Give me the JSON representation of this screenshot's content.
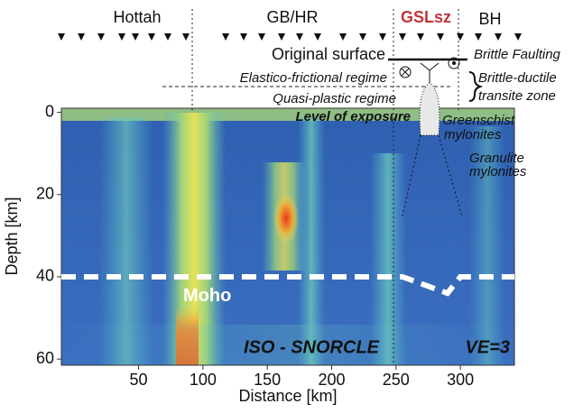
{
  "chart_data": {
    "type": "line",
    "x_label": "Distance [km]",
    "y_label": "Depth [km]",
    "xlim": [
      -10,
      342
    ],
    "ylim": [
      -1,
      61.5
    ],
    "y_inverted": true,
    "xticks": [
      50,
      100,
      150,
      200,
      250,
      300
    ],
    "yticks": [
      0,
      20,
      40,
      60
    ],
    "series": [
      {
        "name": "Moho",
        "color": "#ffffff",
        "dashed": true,
        "x": [
          -10,
          255,
          290,
          300,
          342
        ],
        "values": [
          40,
          40,
          44,
          40,
          40
        ]
      }
    ],
    "annotations": [
      "Hottah",
      "GB/HR",
      "GSLsz",
      "BH",
      "Original surface",
      "Brittle Faulting",
      "Elastico-frictional regime",
      "Brittle-ductile",
      "transite zone",
      "Quasi-plastic regime",
      "Level of exposure",
      "Greenschist",
      "mylonites",
      "Granulite",
      "mylonites",
      "ISO - SNORCLE",
      "VE=3"
    ]
  }
}
